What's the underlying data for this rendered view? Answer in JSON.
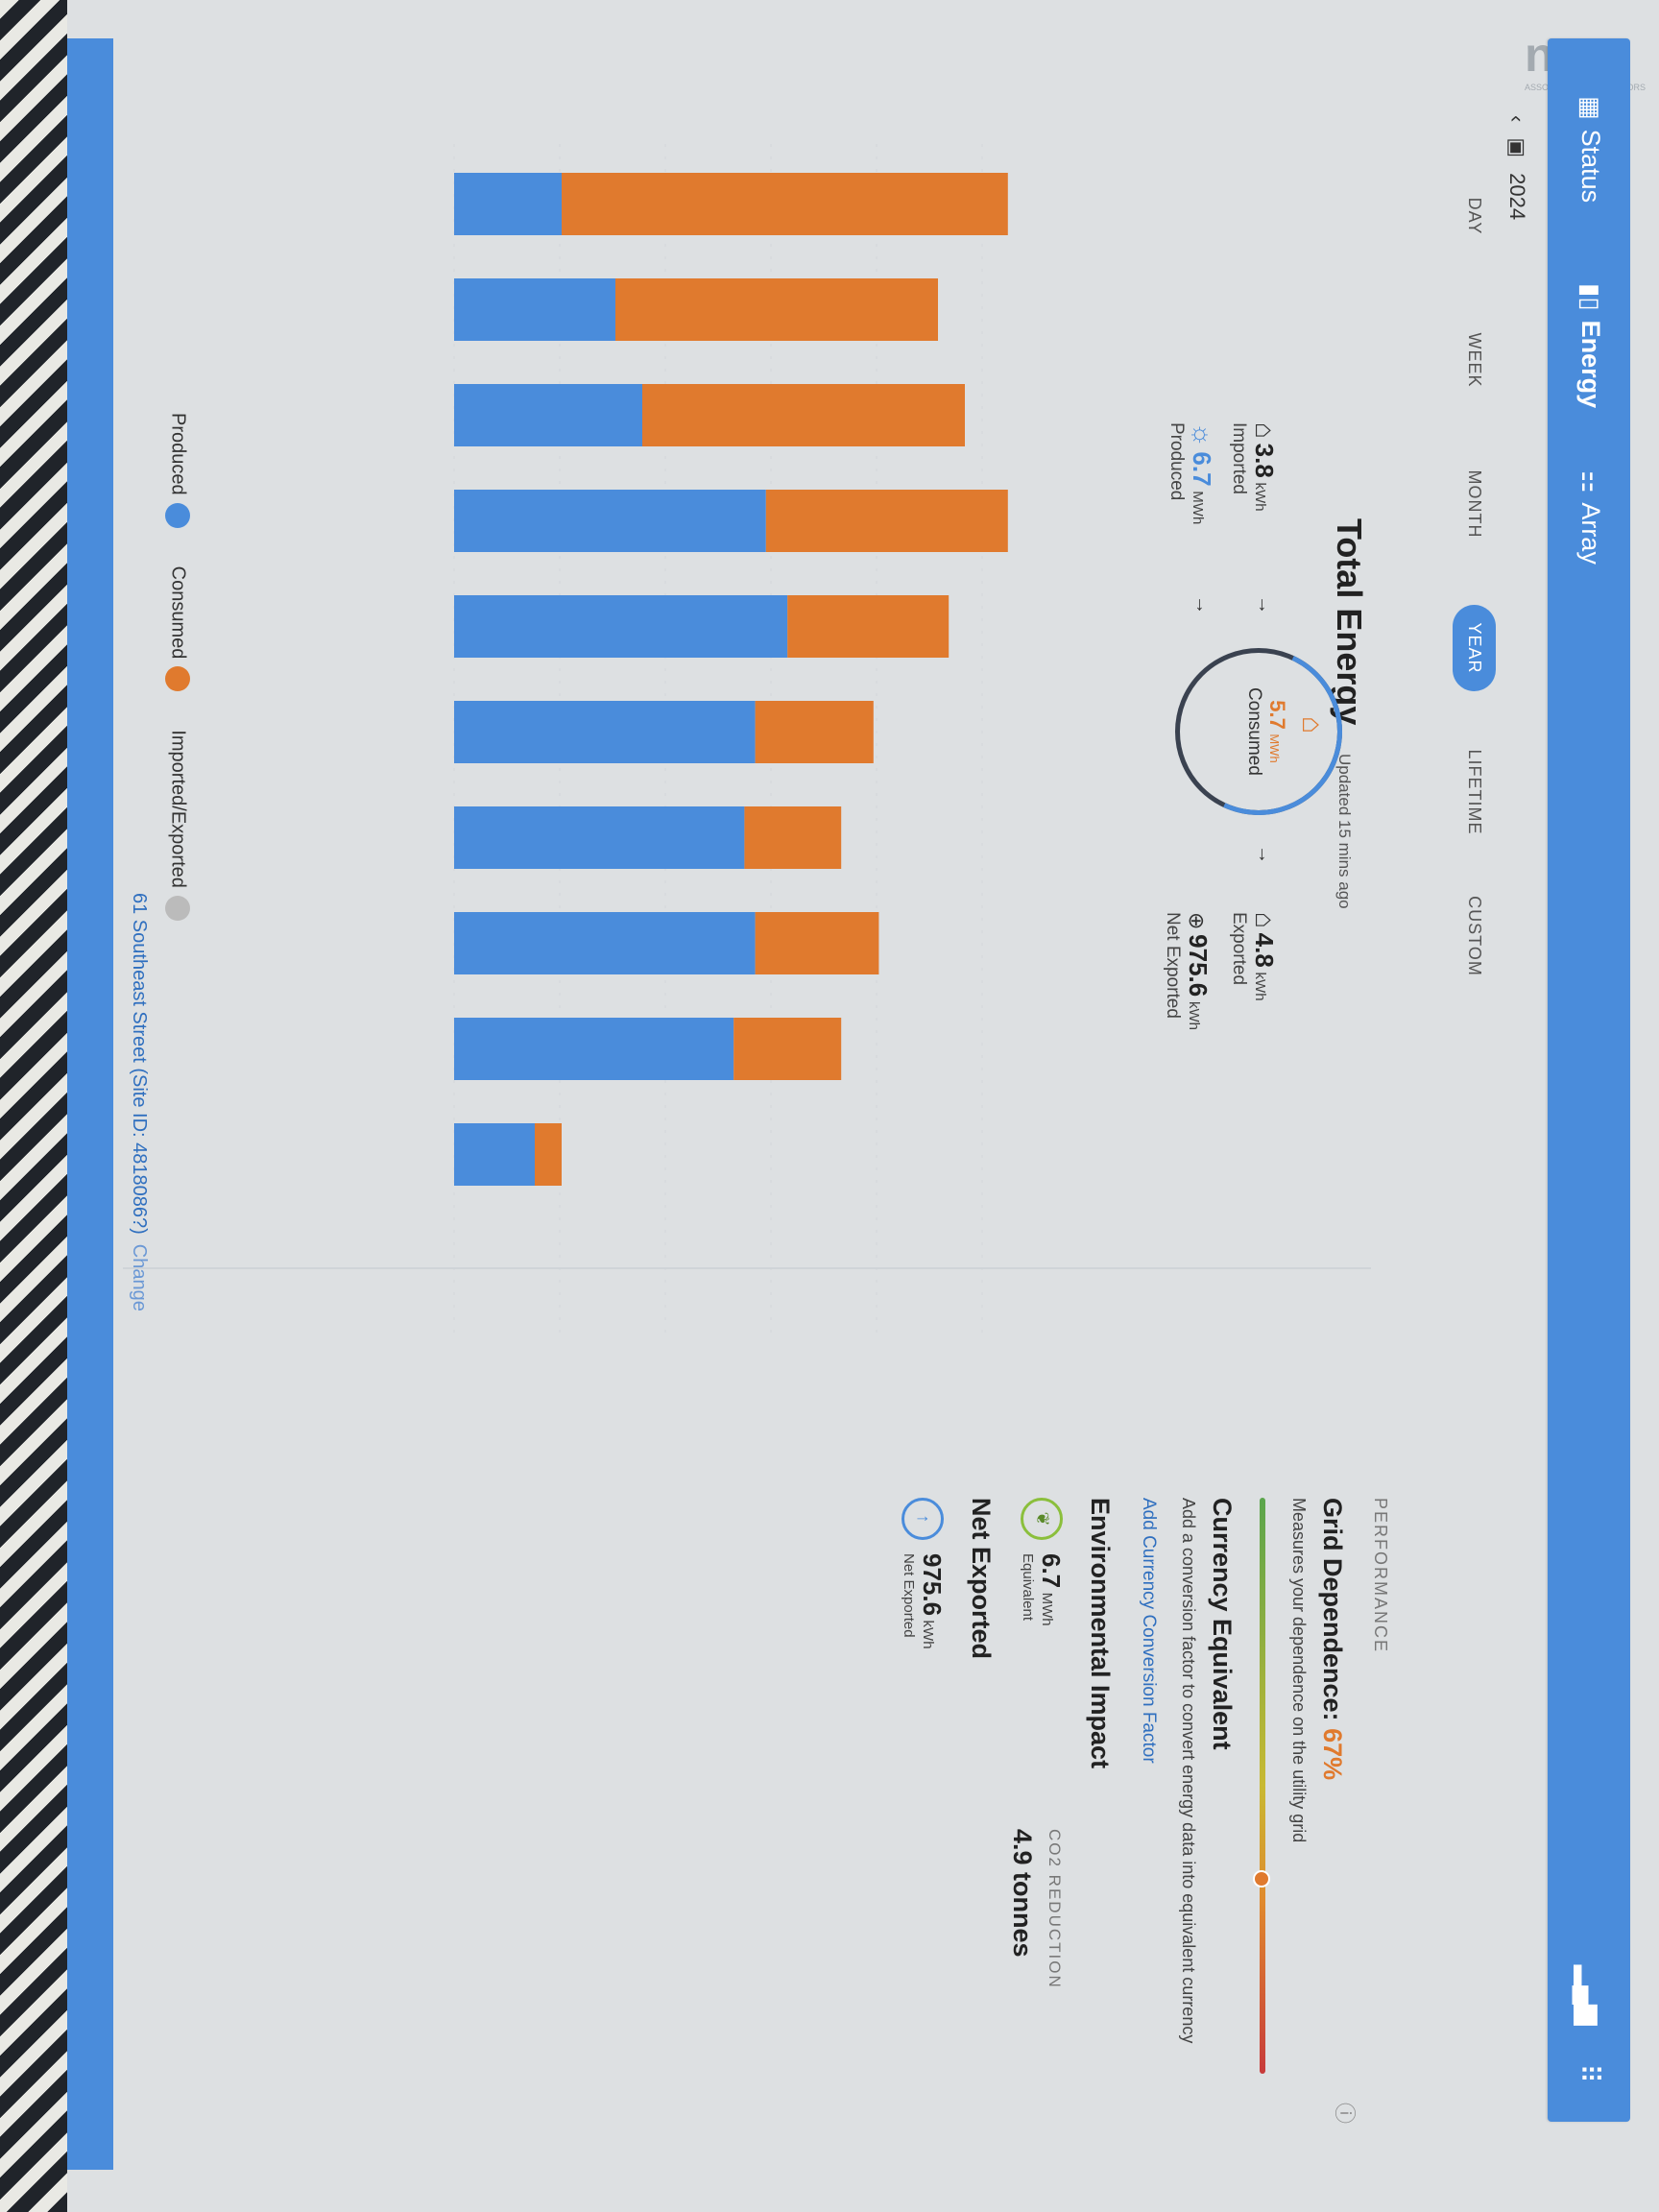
{
  "watermark": {
    "logo": "nsar",
    "sub": "ASSOCIATION OF REALTORS"
  },
  "nav": {
    "items": [
      {
        "label": "Status",
        "icon": "grid-icon"
      },
      {
        "label": "Energy",
        "icon": "bar-chart-icon"
      },
      {
        "label": "Array",
        "icon": "solar-array-icon"
      }
    ]
  },
  "date_nav": {
    "year": "2024"
  },
  "tabs": [
    "DAY",
    "WEEK",
    "MONTH",
    "YEAR",
    "LIFETIME",
    "CUSTOM"
  ],
  "total_energy": {
    "title": "Total Energy",
    "updated": "Updated 15 mins ago",
    "imported": {
      "value": "3.8",
      "unit": "kWh",
      "label": "Imported"
    },
    "produced": {
      "value": "6.7",
      "unit": "MWh",
      "label": "Produced"
    },
    "consumed": {
      "value": "5.7",
      "unit": "MWh",
      "label": "Consumed"
    },
    "exported": {
      "value": "4.8",
      "unit": "kWh",
      "label": "Exported"
    },
    "net_exported": {
      "value": "975.6",
      "unit": "kWh",
      "label": "Net Exported"
    }
  },
  "legend": {
    "produced": "Produced",
    "consumed": "Consumed",
    "imported": "Imported/Exported"
  },
  "chart_data": {
    "type": "bar",
    "stacked": true,
    "series": [
      {
        "name": "Produced",
        "values": [
          0.2,
          0.3,
          0.35,
          0.58,
          0.62,
          0.56,
          0.54,
          0.56,
          0.52,
          0.15
        ],
        "color": "#4a8cdb"
      },
      {
        "name": "Imported/Exported",
        "values": [
          0.83,
          0.6,
          0.6,
          0.45,
          0.3,
          0.22,
          0.18,
          0.23,
          0.2,
          0.05
        ],
        "color": "#e07a2e"
      }
    ],
    "categories": [
      "",
      "",
      "",
      "",
      "",
      "",
      "",
      "",
      "",
      ""
    ]
  },
  "address": {
    "text": "61 Southeast Street (Site ID: 4818086?)",
    "change": "Change"
  },
  "panel": {
    "heading": "PERFORMANCE",
    "grid_dependence_label": "Grid Dependence:",
    "grid_dependence_value": "67%",
    "grid_dependence_fraction": 0.67,
    "grid_desc": "Measures your dependence on the utility grid",
    "currency_title": "Currency Equivalent",
    "currency_desc": "Add a conversion factor to convert energy data into equivalent currency",
    "currency_link": "Add Currency Conversion Factor",
    "env_title": "Environmental Impact",
    "env_value": "6.7",
    "env_unit": "MWh",
    "env_label": "Equivalent",
    "co2_label": "CO2 REDUCTION",
    "co2_value": "4.9 tonnes",
    "net_title": "Net Exported",
    "net_value": "975.6",
    "net_unit": "kWh",
    "net_label": "Net Exported"
  }
}
